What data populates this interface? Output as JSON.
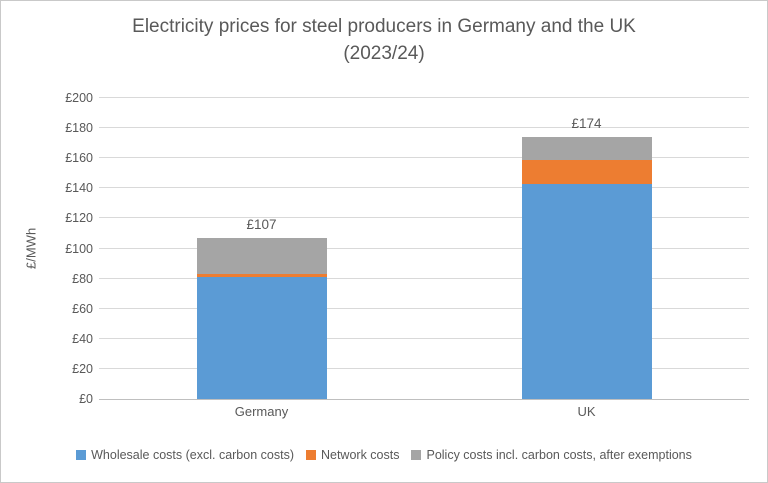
{
  "chart": {
    "title_line1": "Electricity prices for steel producers in Germany and the UK",
    "title_line2": "(2023/24)"
  },
  "chart_data": {
    "type": "bar",
    "stacked": true,
    "title": "Electricity prices for steel producers in Germany and the UK (2023/24)",
    "categories": [
      "Germany",
      "UK"
    ],
    "series": [
      {
        "name": "Wholesale costs (excl. carbon costs)",
        "color": "#5B9BD5",
        "values": [
          81,
          143
        ]
      },
      {
        "name": "Network costs",
        "color": "#ED7D31",
        "values": [
          2,
          16
        ]
      },
      {
        "name": "Policy costs incl. carbon costs, after exemptions",
        "color": "#A5A5A5",
        "values": [
          24,
          15
        ]
      }
    ],
    "totals": [
      107,
      174
    ],
    "bar_labels": [
      "£107",
      "£174"
    ],
    "xlabel": "",
    "ylabel": "£/MWh",
    "ylim": [
      0,
      200
    ],
    "ytick_step": 20,
    "y_ticks": [
      "£0",
      "£20",
      "£40",
      "£60",
      "£80",
      "£100",
      "£120",
      "£140",
      "£160",
      "£180",
      "£200"
    ],
    "grid": true,
    "legend_position": "bottom"
  },
  "colors": {
    "text": "#595959",
    "gridline": "#D9D9D9",
    "axis_line": "#BFBFBF",
    "frame_border": "#C9C9C9"
  }
}
